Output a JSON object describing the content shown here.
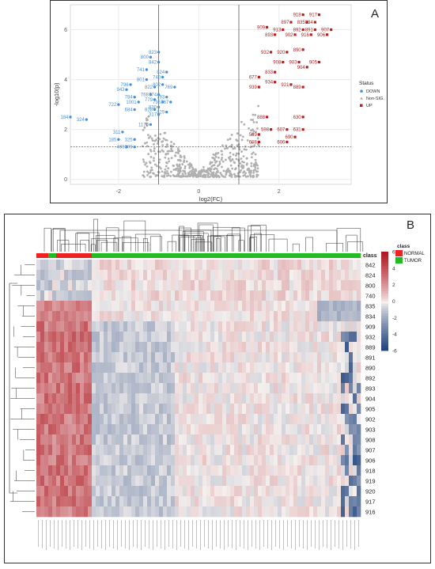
{
  "panel_a": {
    "letter": "A",
    "chart_data": {
      "type": "scatter",
      "title": "",
      "xlabel": "log2(FC)",
      "ylabel": "-log10(p)",
      "xlim": [
        -3.2,
        3.8
      ],
      "ylim": [
        -0.2,
        7.0
      ],
      "x_ticks": [
        -2,
        0,
        2
      ],
      "y_ticks": [
        0,
        2,
        4,
        6
      ],
      "grid": true,
      "threshold_lines": {
        "x": [
          -1,
          1
        ],
        "y": [
          1.3
        ]
      },
      "legend": {
        "title": "Status",
        "position": "right",
        "entries": [
          "DOWN",
          "Non-SIG.",
          "UP"
        ]
      },
      "colors": {
        "DOWN": "#4a90d9",
        "Non-SIG.": "#b0b0b0",
        "UP": "#b22222"
      },
      "series": [
        {
          "name": "DOWN",
          "points": [
            {
              "x": -3.2,
              "y": 2.5,
              "label": "184"
            },
            {
              "x": -2.8,
              "y": 2.4,
              "label": "324"
            },
            {
              "x": -2.0,
              "y": 3.0,
              "label": "722"
            },
            {
              "x": -1.8,
              "y": 3.6,
              "label": "943"
            },
            {
              "x": -1.7,
              "y": 3.8,
              "label": "796"
            },
            {
              "x": -1.6,
              "y": 3.3,
              "label": "784"
            },
            {
              "x": -1.5,
              "y": 3.1,
              "label": "1001"
            },
            {
              "x": -1.6,
              "y": 2.8,
              "label": "684"
            },
            {
              "x": -1.3,
              "y": 4.4,
              "label": "741"
            },
            {
              "x": -1.3,
              "y": 4.0,
              "label": "801"
            },
            {
              "x": -1.2,
              "y": 4.9,
              "label": "800"
            },
            {
              "x": -1.0,
              "y": 5.1,
              "label": "823"
            },
            {
              "x": -1.0,
              "y": 4.7,
              "label": "842"
            },
            {
              "x": -0.8,
              "y": 4.3,
              "label": "824"
            },
            {
              "x": -0.9,
              "y": 4.1,
              "label": "740"
            },
            {
              "x": -0.9,
              "y": 3.8,
              "label": "802"
            },
            {
              "x": -0.6,
              "y": 3.7,
              "label": "769"
            },
            {
              "x": -1.1,
              "y": 3.7,
              "label": "822"
            },
            {
              "x": -1.2,
              "y": 3.4,
              "label": "768"
            },
            {
              "x": -1.0,
              "y": 3.4,
              "label": "774"
            },
            {
              "x": -0.8,
              "y": 3.3,
              "label": "793"
            },
            {
              "x": -1.1,
              "y": 3.2,
              "label": "779"
            },
            {
              "x": -0.9,
              "y": 3.1,
              "label": "795"
            },
            {
              "x": -0.7,
              "y": 3.1,
              "label": "767"
            },
            {
              "x": -1.0,
              "y": 2.9,
              "label": "830"
            },
            {
              "x": -1.1,
              "y": 2.8,
              "label": "828"
            },
            {
              "x": -0.8,
              "y": 2.7,
              "label": "829"
            },
            {
              "x": -1.0,
              "y": 2.6,
              "label": "317"
            },
            {
              "x": -1.2,
              "y": 2.2,
              "label": "1170"
            },
            {
              "x": -1.9,
              "y": 1.9,
              "label": "311"
            },
            {
              "x": -2.0,
              "y": 1.6,
              "label": "185"
            },
            {
              "x": -1.6,
              "y": 1.6,
              "label": "325"
            },
            {
              "x": -1.8,
              "y": 1.3,
              "label": "460"
            },
            {
              "x": -1.6,
              "y": 1.3,
              "label": "309"
            }
          ]
        },
        {
          "name": "UP",
          "points": [
            {
              "x": 2.6,
              "y": 6.6,
              "label": "918"
            },
            {
              "x": 3.0,
              "y": 6.6,
              "label": "917"
            },
            {
              "x": 2.9,
              "y": 6.3,
              "label": "834"
            },
            {
              "x": 2.3,
              "y": 6.3,
              "label": "897"
            },
            {
              "x": 2.7,
              "y": 6.3,
              "label": "835"
            },
            {
              "x": 1.7,
              "y": 6.1,
              "label": "909"
            },
            {
              "x": 2.1,
              "y": 6.0,
              "label": "913"
            },
            {
              "x": 2.6,
              "y": 6.0,
              "label": "892"
            },
            {
              "x": 2.9,
              "y": 6.0,
              "label": "891"
            },
            {
              "x": 3.3,
              "y": 6.0,
              "label": "907"
            },
            {
              "x": 1.9,
              "y": 5.8,
              "label": "893"
            },
            {
              "x": 2.4,
              "y": 5.8,
              "label": "902"
            },
            {
              "x": 2.8,
              "y": 5.8,
              "label": "916"
            },
            {
              "x": 3.2,
              "y": 5.8,
              "label": "906"
            },
            {
              "x": 1.8,
              "y": 5.1,
              "label": "932"
            },
            {
              "x": 2.2,
              "y": 5.1,
              "label": "920"
            },
            {
              "x": 2.6,
              "y": 5.2,
              "label": "890"
            },
            {
              "x": 2.1,
              "y": 4.7,
              "label": "908"
            },
            {
              "x": 2.5,
              "y": 4.7,
              "label": "903"
            },
            {
              "x": 3.0,
              "y": 4.7,
              "label": "905"
            },
            {
              "x": 2.7,
              "y": 4.5,
              "label": "904"
            },
            {
              "x": 1.9,
              "y": 4.3,
              "label": "833"
            },
            {
              "x": 1.5,
              "y": 4.1,
              "label": "677"
            },
            {
              "x": 1.9,
              "y": 3.9,
              "label": "934"
            },
            {
              "x": 2.3,
              "y": 3.8,
              "label": "921"
            },
            {
              "x": 2.6,
              "y": 3.7,
              "label": "889"
            },
            {
              "x": 1.5,
              "y": 3.7,
              "label": "939"
            },
            {
              "x": 1.7,
              "y": 2.5,
              "label": "888"
            },
            {
              "x": 2.6,
              "y": 2.5,
              "label": "630"
            },
            {
              "x": 1.8,
              "y": 2.0,
              "label": "598"
            },
            {
              "x": 2.2,
              "y": 2.0,
              "label": "607"
            },
            {
              "x": 2.6,
              "y": 2.0,
              "label": "631"
            },
            {
              "x": 1.5,
              "y": 1.8,
              "label": "589"
            },
            {
              "x": 2.4,
              "y": 1.7,
              "label": "690"
            },
            {
              "x": 1.5,
              "y": 1.5,
              "label": "608"
            },
            {
              "x": 2.2,
              "y": 1.5,
              "label": "606"
            }
          ]
        }
      ]
    }
  },
  "panel_b": {
    "letter": "B",
    "chart_data": {
      "type": "heatmap",
      "rows": [
        "842",
        "824",
        "800",
        "740",
        "835",
        "834",
        "909",
        "932",
        "889",
        "891",
        "890",
        "892",
        "893",
        "904",
        "905",
        "902",
        "903",
        "908",
        "907",
        "906",
        "918",
        "919",
        "920",
        "917",
        "916"
      ],
      "annotation_label": "class",
      "legend": {
        "title": "class",
        "position": "right",
        "entries": [
          "NORMAL",
          "TUMOR"
        ]
      },
      "class_colors": {
        "NORMAL": "#ee2222",
        "TUMOR": "#22bb22"
      },
      "color_scale": {
        "min": -6,
        "max": 6,
        "ticks": [
          6,
          4,
          2,
          0,
          -2,
          -4,
          -6
        ],
        "low": "#1a3f7a",
        "mid": "#f5f0ee",
        "high": "#b01822"
      }
    }
  }
}
